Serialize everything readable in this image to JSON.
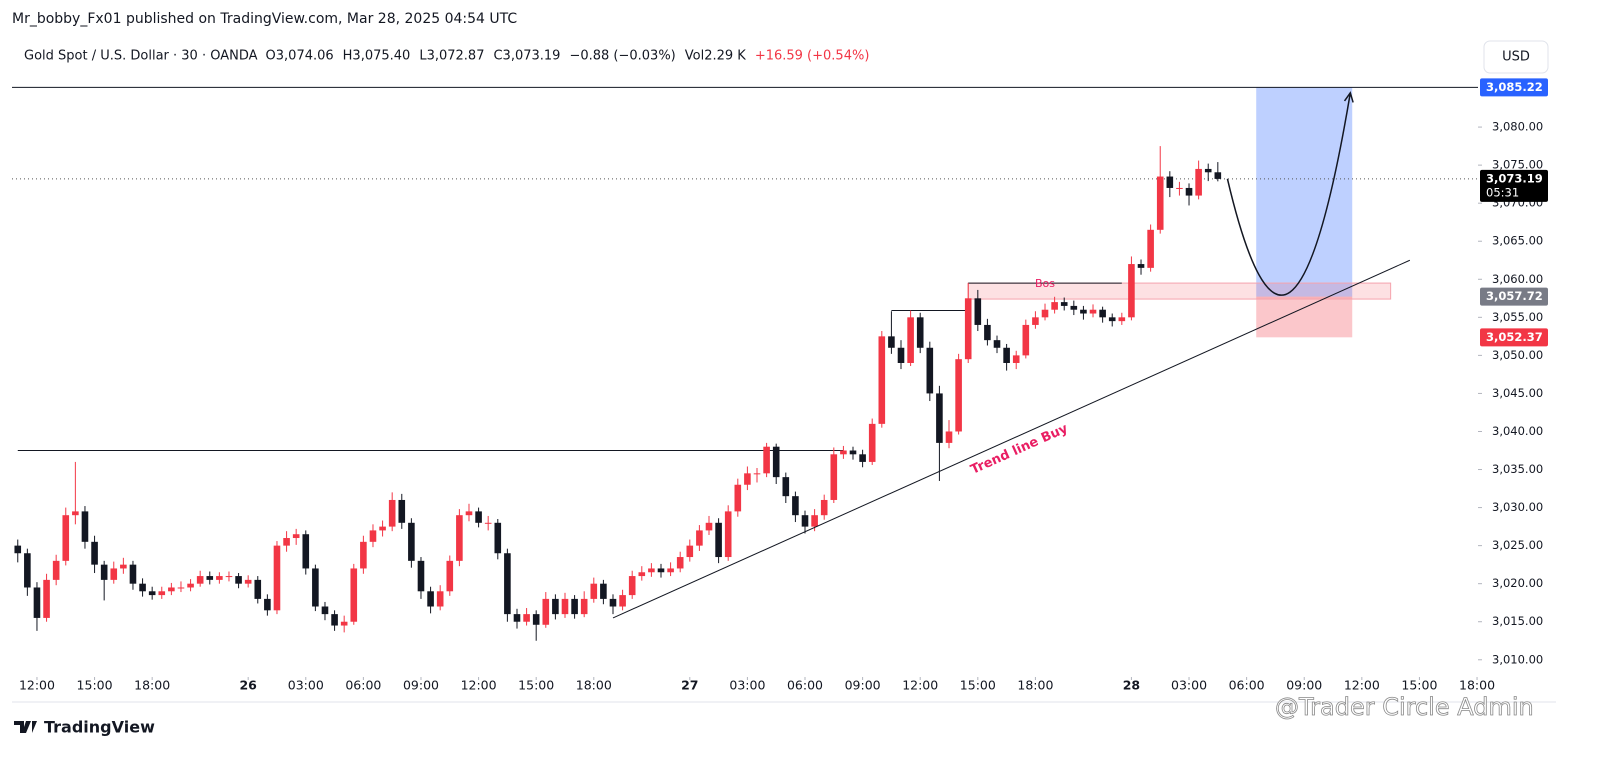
{
  "header": "Mr_bobby_Fx01 published on TradingView.com, Mar 28, 2025 04:54 UTC",
  "legend": {
    "symbol": "Gold Spot / U.S. Dollar · 30 · OANDA",
    "items": [
      {
        "text": "O3,074.06"
      },
      {
        "text": "H3,075.40"
      },
      {
        "text": "L3,072.87"
      },
      {
        "text": "C3,073.19"
      },
      {
        "text": "−0.88 (−0.03%)"
      },
      {
        "text": "Vol2.29 K"
      },
      {
        "text": "+16.59 (+0.54%)",
        "color": "#f23645"
      }
    ]
  },
  "currency": "USD",
  "footer": "TradingView",
  "watermark": "@Trader Circle Admin",
  "chart_data": {
    "type": "candlestick",
    "up_color": "#f23645",
    "down_color": "#131722",
    "open": [
      3025,
      3024,
      3019.5,
      3015.5,
      3020.5,
      3023,
      3029,
      3029.5,
      3025.5,
      3022.5,
      3020.5,
      3022,
      3022.5,
      3020,
      3019,
      3018.5,
      3019,
      3019.5,
      3019.5,
      3020,
      3021,
      3020.5,
      3021,
      3021,
      3020,
      3020.5,
      3018,
      3016.5,
      3025,
      3026,
      3026.5,
      3022,
      3017,
      3016,
      3014.5,
      3015,
      3022,
      3025.5,
      3027,
      3027.5,
      3031,
      3028,
      3023,
      3019,
      3017,
      3019,
      3023,
      3029,
      3029.5,
      3028,
      3028,
      3024,
      3016,
      3015,
      3016,
      3014.6,
      3018,
      3016,
      3018,
      3016,
      3018,
      3020,
      3018,
      3017,
      3018.5,
      3021,
      3021.5,
      3022,
      3021.5,
      3022,
      3023.5,
      3025,
      3027,
      3028,
      3023.5,
      3029.5,
      3033,
      3034.5,
      3034.5,
      3038,
      3034,
      3031.5,
      3029,
      3027.5,
      3029,
      3031,
      3037,
      3037.5,
      3037,
      3036,
      3041,
      3052.5,
      3051,
      3049,
      3055,
      3051,
      3045,
      3038.5,
      3040,
      3049.5,
      3057.5,
      3054,
      3052,
      3051,
      3049,
      3050,
      3054,
      3055,
      3056,
      3057,
      3056.5,
      3056,
      3055.5,
      3056,
      3055,
      3054.5,
      3055,
      3062,
      3061.5,
      3066.5,
      3073.5,
      3072,
      3072,
      3071,
      3074.5,
      3074.06
    ],
    "high": [
      3025.8,
      3024.6,
      3020.2,
      3021.3,
      3023.8,
      3030,
      3036,
      3030.2,
      3026.3,
      3023,
      3022.9,
      3023.4,
      3023,
      3020.7,
      3019.6,
      3019.6,
      3020.1,
      3020.3,
      3020.6,
      3021.7,
      3021.6,
      3021.5,
      3021.6,
      3021.4,
      3021.1,
      3021,
      3018.6,
      3025.6,
      3026.9,
      3027.2,
      3027,
      3022.5,
      3017.6,
      3016.5,
      3015.8,
      3022.6,
      3026.3,
      3027.8,
      3028.3,
      3032,
      3031.8,
      3028.6,
      3023.5,
      3019.6,
      3019.8,
      3023.7,
      3029.8,
      3030.5,
      3030,
      3028.9,
      3028.5,
      3024.6,
      3016.7,
      3016.8,
      3016.5,
      3018.9,
      3018.6,
      3018.8,
      3018.5,
      3019,
      3020.8,
      3020.5,
      3018.6,
      3019.2,
      3021.7,
      3022.3,
      3022.7,
      3022.6,
      3022.8,
      3024.2,
      3025.8,
      3027.7,
      3028.9,
      3028.6,
      3030.3,
      3033.8,
      3035.4,
      3035.2,
      3038.5,
      3038.4,
      3034.6,
      3032.1,
      3029.6,
      3029.8,
      3031.7,
      3037.9,
      3038.1,
      3038,
      3037.6,
      3041.7,
      3053.2,
      3055.8,
      3052,
      3055.9,
      3055.6,
      3051.8,
      3046,
      3041.5,
      3050.2,
      3059.5,
      3058.6,
      3054.8,
      3052.6,
      3051.5,
      3050.6,
      3054.7,
      3055.8,
      3056.8,
      3057.7,
      3057.6,
      3057.2,
      3056.5,
      3056.7,
      3056.4,
      3055.5,
      3055.6,
      3063,
      3062.6,
      3067.2,
      3077.5,
      3074.2,
      3072.8,
      3072.6,
      3075.6,
      3075.2,
      3075.4
    ],
    "low": [
      3022.8,
      3018.4,
      3013.8,
      3015,
      3019.8,
      3022.4,
      3027.8,
      3024.6,
      3021.4,
      3017.8,
      3020,
      3021.3,
      3019.2,
      3018.3,
      3017.9,
      3018,
      3018.5,
      3018.9,
      3019,
      3019.6,
      3019.9,
      3020,
      3020.3,
      3019.4,
      3019.5,
      3017.4,
      3015.8,
      3016,
      3024.2,
      3025.1,
      3021.2,
      3016.4,
      3015.2,
      3013.8,
      3013.6,
      3014.6,
      3021.3,
      3024.8,
      3026.2,
      3026.9,
      3027.2,
      3022.1,
      3018,
      3016.1,
      3016.5,
      3018.4,
      3022.3,
      3028.2,
      3027.4,
      3027,
      3023.2,
      3015,
      3014.1,
      3014.5,
      3012.5,
      3014.2,
      3015.3,
      3015.5,
      3015.4,
      3015.6,
      3017.5,
      3017.3,
      3016,
      3016.5,
      3018,
      3020.4,
      3020.9,
      3020.8,
      3021,
      3021.5,
      3022.9,
      3024.3,
      3026.4,
      3022.7,
      3023,
      3028.8,
      3032.3,
      3033.3,
      3034,
      3033.1,
      3030.6,
      3028.1,
      3026.6,
      3026.9,
      3028.4,
      3030.6,
      3036.4,
      3036.3,
      3035.3,
      3035.6,
      3040.5,
      3050.2,
      3048.2,
      3048.6,
      3050.3,
      3044,
      3033.5,
      3037.8,
      3039.6,
      3049,
      3053.2,
      3051.3,
      3050.3,
      3048,
      3048.2,
      3049.6,
      3053.5,
      3054.6,
      3055.5,
      3055.9,
      3055.3,
      3054.7,
      3055,
      3054.3,
      3053.8,
      3054,
      3054.6,
      3060.6,
      3061,
      3066,
      3070.8,
      3071,
      3069.7,
      3070.5,
      3072.9,
      3072.87
    ],
    "close": [
      3024,
      3019.5,
      3015.5,
      3020.5,
      3023,
      3029,
      3029.5,
      3025.5,
      3022.5,
      3020.5,
      3022,
      3022.5,
      3020,
      3019,
      3018.5,
      3019,
      3019.5,
      3019.5,
      3020,
      3021,
      3020.5,
      3021,
      3021,
      3020,
      3020.5,
      3018,
      3016.5,
      3025,
      3026,
      3026.5,
      3022,
      3017,
      3016,
      3014.5,
      3015,
      3022,
      3025.5,
      3027,
      3027.5,
      3031,
      3028,
      3023,
      3019,
      3017,
      3019,
      3023,
      3029,
      3029.5,
      3028,
      3028,
      3024,
      3016,
      3015,
      3016,
      3014.6,
      3018,
      3016,
      3018,
      3016,
      3018,
      3020,
      3018,
      3017,
      3018.5,
      3021,
      3021.5,
      3022,
      3021.5,
      3022,
      3023.5,
      3025,
      3027,
      3028,
      3023.5,
      3029.5,
      3033,
      3034.5,
      3034.5,
      3038,
      3034,
      3031.5,
      3029,
      3027.5,
      3029,
      3031,
      3037,
      3037.5,
      3037,
      3036,
      3041,
      3052.5,
      3051,
      3049,
      3055,
      3051,
      3045,
      3038.5,
      3040,
      3049.5,
      3057.5,
      3054,
      3052,
      3051,
      3049,
      3050,
      3054,
      3055,
      3056,
      3057,
      3056.5,
      3056,
      3055.5,
      3056,
      3055,
      3054.5,
      3055,
      3062,
      3061.5,
      3066.5,
      3073.5,
      3072,
      3072,
      3071,
      3074.5,
      3074.06,
      3073.19
    ],
    "xlim": [
      -0.6,
      152.1
    ],
    "xticks": [
      {
        "value": 2,
        "label": "12:00"
      },
      {
        "value": 8,
        "label": "15:00"
      },
      {
        "value": 14,
        "label": "18:00"
      },
      {
        "value": 24,
        "label": "26"
      },
      {
        "value": 30,
        "label": "03:00"
      },
      {
        "value": 36,
        "label": "06:00"
      },
      {
        "value": 42,
        "label": "09:00"
      },
      {
        "value": 48,
        "label": "12:00"
      },
      {
        "value": 54,
        "label": "15:00"
      },
      {
        "value": 60,
        "label": "18:00"
      },
      {
        "value": 70,
        "label": "27"
      },
      {
        "value": 76,
        "label": "03:00"
      },
      {
        "value": 82,
        "label": "06:00"
      },
      {
        "value": 88,
        "label": "09:00"
      },
      {
        "value": 94,
        "label": "12:00"
      },
      {
        "value": 100,
        "label": "15:00"
      },
      {
        "value": 106,
        "label": "18:00"
      },
      {
        "value": 116,
        "label": "28"
      },
      {
        "value": 122,
        "label": "03:00"
      },
      {
        "value": 128,
        "label": "06:00"
      },
      {
        "value": 134,
        "label": "09:00"
      },
      {
        "value": 140,
        "label": "12:00"
      },
      {
        "value": 146,
        "label": "15:00"
      },
      {
        "value": 152,
        "label": "18:00"
      }
    ],
    "ylim": [
      3008,
      3087.5
    ],
    "yticks": [
      {
        "value": 3010,
        "label": "3,010.00"
      },
      {
        "value": 3015,
        "label": "3,015.00"
      },
      {
        "value": 3020,
        "label": "3,020.00"
      },
      {
        "value": 3025,
        "label": "3,025.00"
      },
      {
        "value": 3030,
        "label": "3,030.00"
      },
      {
        "value": 3035,
        "label": "3,035.00"
      },
      {
        "value": 3040,
        "label": "3,040.00"
      },
      {
        "value": 3045,
        "label": "3,045.00"
      },
      {
        "value": 3050,
        "label": "3,050.00"
      },
      {
        "value": 3055,
        "label": "3,055.00"
      },
      {
        "value": 3060,
        "label": "3,060.00"
      },
      {
        "value": 3065,
        "label": "3,065.00"
      },
      {
        "value": 3070,
        "label": "3,070.00"
      },
      {
        "value": 3075,
        "label": "3,075.00"
      },
      {
        "value": 3080,
        "label": "3,080.00"
      }
    ],
    "current_price": {
      "value": 3073.19,
      "label": "3,073.19",
      "countdown": "05:31"
    },
    "position": {
      "from": 129,
      "to": 139,
      "target": {
        "value": 3085.22,
        "label": "3,085.22",
        "color": "#2962ff"
      },
      "entry": {
        "value": 3057.72,
        "label": "3,057.72",
        "color": "#787b86"
      },
      "stop": {
        "value": 3052.37,
        "label": "3,052.37",
        "color": "#f23645"
      }
    },
    "horizontal_rays": [
      {
        "price": 3037.5,
        "from": 0,
        "to": 86
      },
      {
        "price": 3055.9,
        "from": 91,
        "to": 99
      }
    ],
    "bos": {
      "label": "Bos",
      "price": 3059.5,
      "from": 99,
      "to": 115
    },
    "zone": {
      "top": 3059.5,
      "bottom": 3057.4,
      "from": 99,
      "to": 143
    },
    "trend_line": {
      "label": "Trend line Buy",
      "from": [
        62,
        3015.5
      ],
      "to": [
        145,
        3062.5
      ]
    },
    "projection": {
      "x": [
        126,
        132.5,
        138.8
      ],
      "y": [
        3073.2,
        3058.3,
        3084.5
      ]
    }
  }
}
